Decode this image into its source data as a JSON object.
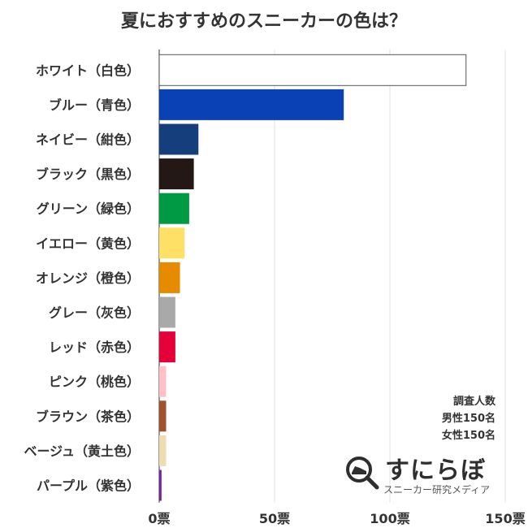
{
  "chart_data": {
    "type": "bar",
    "orientation": "horizontal",
    "title": "夏におすすめのスニーカーの色は？",
    "categories": [
      "ホワイト（白色）",
      "ブルー（青色）",
      "ネイビー（紺色）",
      "ブラック（黒色）",
      "グリーン（緑色）",
      "イエロー（黄色）",
      "オレンジ（橙色）",
      "グレー（灰色）",
      "レッド（赤色）",
      "ピンク（桃色）",
      "ブラウン（茶色）",
      "ベージュ（黄土色）",
      "パープル（紫色）"
    ],
    "values": [
      133,
      80,
      17,
      15,
      13,
      11,
      9,
      7,
      7,
      3,
      3,
      3,
      1
    ],
    "colors": [
      "#ffffff",
      "#0a41b4",
      "#143f7c",
      "#231815",
      "#009944",
      "#ffe066",
      "#e68a00",
      "#a9a9a9",
      "#e60039",
      "#ffc0c8",
      "#a0522d",
      "#eedcb3",
      "#7a1fa2"
    ],
    "xlim": [
      0,
      150
    ],
    "xticks": [
      "0票",
      "50票",
      "100票",
      "150票"
    ],
    "grid": true,
    "legend": "none"
  },
  "note": {
    "line1": "調査人数",
    "line2": "男性150名",
    "line3": "女性150名"
  },
  "logo": {
    "name": "すにらぼ",
    "tagline": "スニーカー研究メディア",
    "icon": "magnifier-sneaker-icon"
  }
}
